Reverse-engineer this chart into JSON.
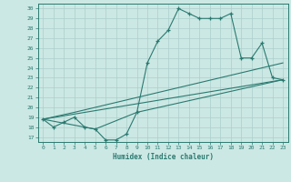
{
  "title": "",
  "xlabel": "Humidex (Indice chaleur)",
  "ylabel": "",
  "bg_color": "#cce8e4",
  "grid_color": "#aacfcb",
  "line_color": "#2a7a70",
  "xlim": [
    -0.5,
    23.5
  ],
  "ylim": [
    16.5,
    30.5
  ],
  "yticks": [
    17,
    18,
    19,
    20,
    21,
    22,
    23,
    24,
    25,
    26,
    27,
    28,
    29,
    30
  ],
  "xticks": [
    0,
    1,
    2,
    3,
    4,
    5,
    6,
    7,
    8,
    9,
    10,
    11,
    12,
    13,
    14,
    15,
    16,
    17,
    18,
    19,
    20,
    21,
    22,
    23
  ],
  "line1_x": [
    0,
    1,
    2,
    3,
    4,
    5,
    6,
    7,
    8,
    9,
    10,
    11,
    12,
    13,
    14,
    15,
    16,
    17,
    18,
    19,
    20,
    21,
    22,
    23
  ],
  "line1_y": [
    18.8,
    18.0,
    18.5,
    19.0,
    18.0,
    17.8,
    16.7,
    16.7,
    17.3,
    19.5,
    24.5,
    26.7,
    27.8,
    30.0,
    29.5,
    29.0,
    29.0,
    29.0,
    29.5,
    25.0,
    25.0,
    26.5,
    23.0,
    22.8
  ],
  "line2_x": [
    0,
    3,
    23
  ],
  "line2_y": [
    18.8,
    19.5,
    24.5
  ],
  "line3_x": [
    0,
    23
  ],
  "line3_y": [
    18.8,
    22.8
  ],
  "line4_x": [
    0,
    5,
    9,
    23
  ],
  "line4_y": [
    18.8,
    17.8,
    19.5,
    22.8
  ]
}
